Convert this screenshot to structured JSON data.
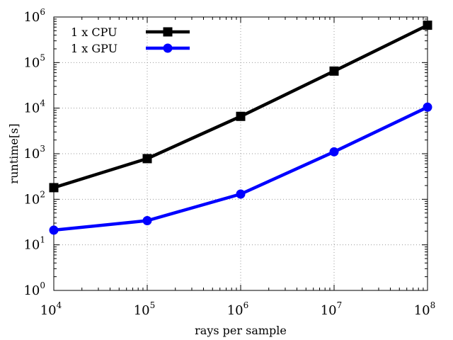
{
  "chart_data": {
    "type": "line",
    "xlabel": "rays per sample",
    "ylabel": "runtime[s]",
    "x_scale": "log",
    "y_scale": "log",
    "xlim": [
      10000,
      100000000
    ],
    "ylim": [
      1,
      1000000
    ],
    "x_ticks": [
      {
        "base": "10",
        "exp": "4",
        "value": 10000
      },
      {
        "base": "10",
        "exp": "5",
        "value": 100000
      },
      {
        "base": "10",
        "exp": "6",
        "value": 1000000
      },
      {
        "base": "10",
        "exp": "7",
        "value": 10000000
      },
      {
        "base": "10",
        "exp": "8",
        "value": 100000000
      }
    ],
    "y_ticks": [
      {
        "base": "10",
        "exp": "0",
        "value": 1
      },
      {
        "base": "10",
        "exp": "1",
        "value": 10
      },
      {
        "base": "10",
        "exp": "2",
        "value": 100
      },
      {
        "base": "10",
        "exp": "3",
        "value": 1000
      },
      {
        "base": "10",
        "exp": "4",
        "value": 10000
      },
      {
        "base": "10",
        "exp": "5",
        "value": 100000
      },
      {
        "base": "10",
        "exp": "6",
        "value": 1000000
      }
    ],
    "x": [
      10000,
      100000,
      1000000,
      10000000,
      100000000
    ],
    "grid": true,
    "legend_position": "top-left",
    "series": [
      {
        "name": "1 x CPU",
        "color": "#000000",
        "marker": "square",
        "values": [
          180,
          780,
          6600,
          65000,
          660000
        ]
      },
      {
        "name": "1 x GPU",
        "color": "#0000ff",
        "marker": "circle",
        "values": [
          21,
          34,
          130,
          1100,
          10500
        ]
      }
    ]
  }
}
